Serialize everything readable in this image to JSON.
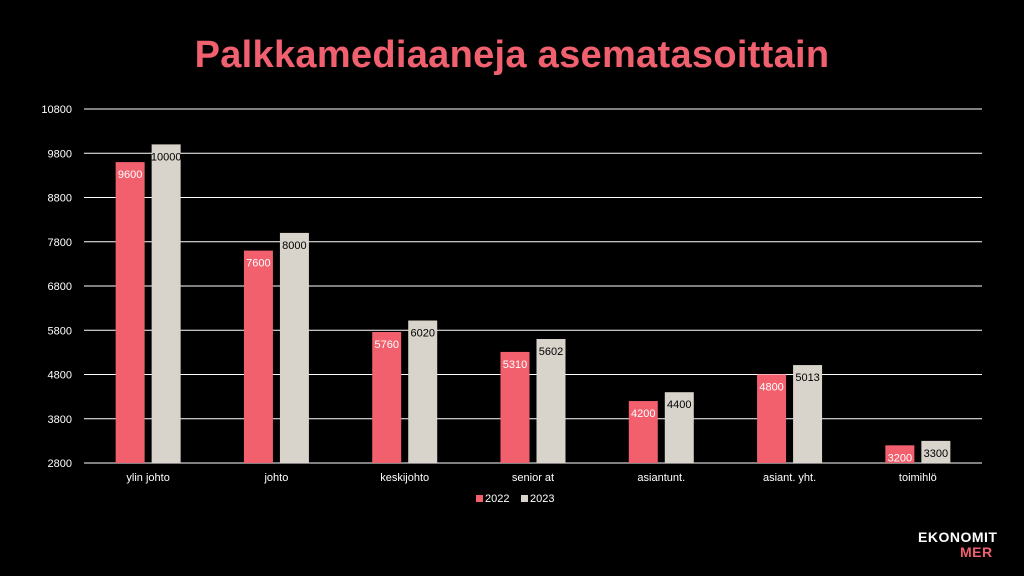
{
  "title": "Palkkamediaaneja asematasoittain",
  "logo": {
    "line1": "EKONOMIT",
    "line2": "MER"
  },
  "colors": {
    "series_2022": "#f2606e",
    "series_2023": "#d8d3cb",
    "title": "#f0606f",
    "grid": "#ffffff",
    "background": "#000000"
  },
  "chart_data": {
    "type": "bar",
    "title": "Palkkamediaaneja asematasoittain",
    "categories": [
      "ylin johto",
      "johto",
      "keskijohto",
      "senior at",
      "asiantunt.",
      "asiant. yht.",
      "toimihlö"
    ],
    "series": [
      {
        "name": "2022",
        "values": [
          9600,
          7600,
          5760,
          5310,
          4200,
          4800,
          3200
        ]
      },
      {
        "name": "2023",
        "values": [
          10000,
          8000,
          6020,
          5602,
          4400,
          5013,
          3300
        ]
      }
    ],
    "ylim": [
      2800,
      10800
    ],
    "yticks": [
      2800,
      3800,
      4800,
      5800,
      6800,
      7800,
      8800,
      9800,
      10800
    ],
    "grid": true,
    "legend": "bottom",
    "data_labels": true
  }
}
